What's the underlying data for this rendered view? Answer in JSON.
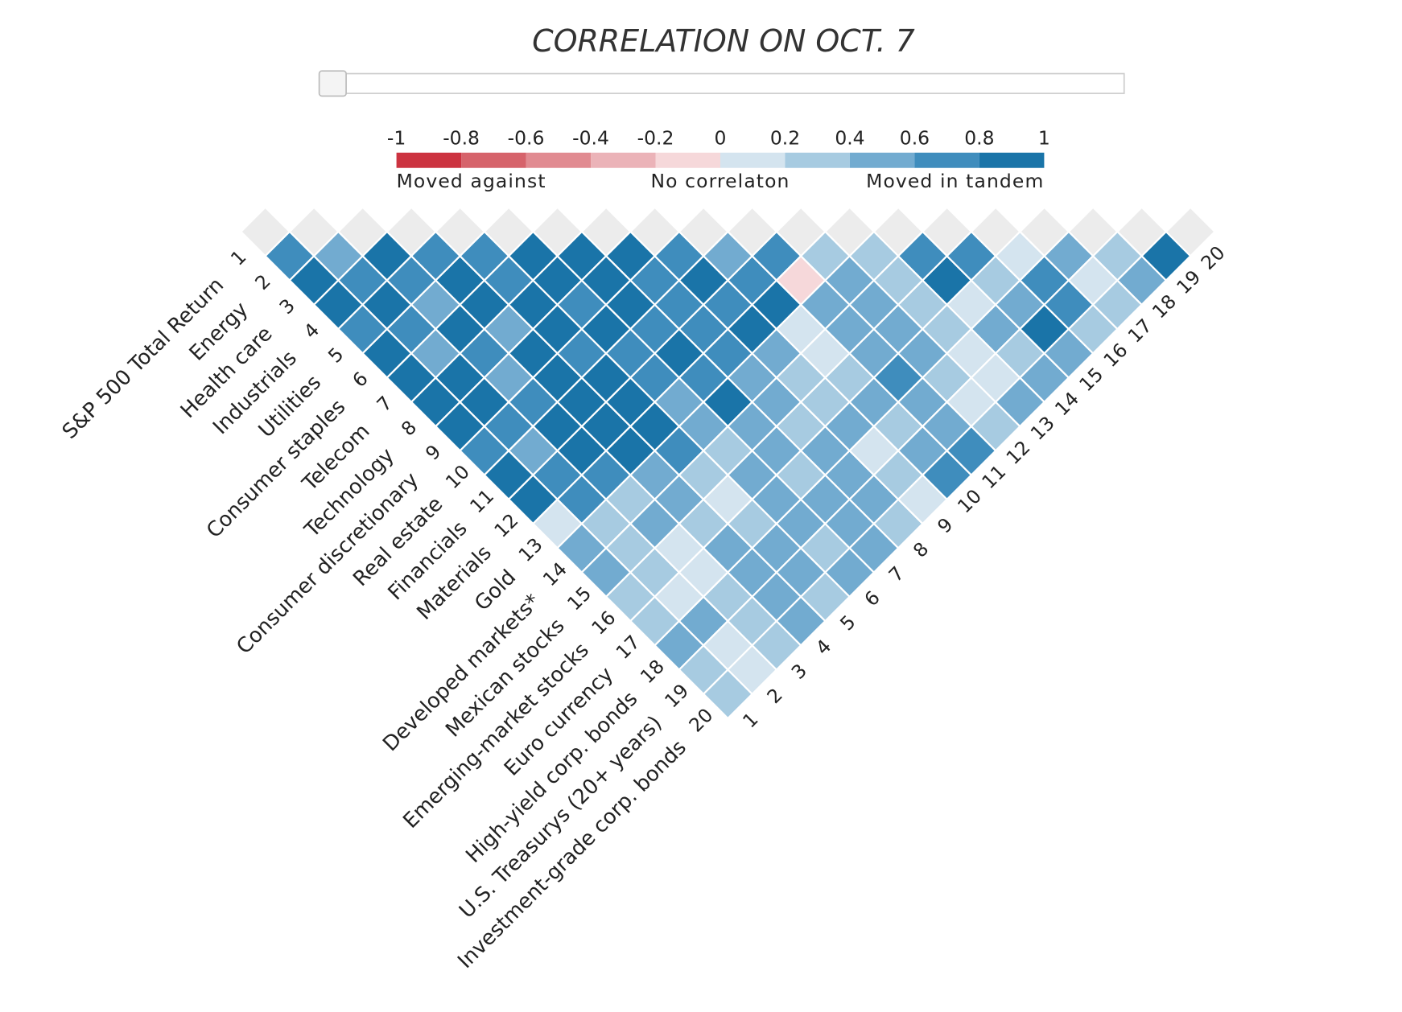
{
  "chart_data": {
    "type": "correlation-triangle",
    "title": "CORRELATION ON OCT. 7",
    "legend": {
      "ticks": [
        -1,
        -0.8,
        -0.6,
        -0.4,
        -0.2,
        0,
        0.2,
        0.4,
        0.6,
        0.8,
        1
      ],
      "colors": [
        "#cc3340",
        "#d6636b",
        "#e18b91",
        "#ebb3b8",
        "#f6d8da",
        "#d4e4ef",
        "#a7cbe1",
        "#72abd0",
        "#3f8dbd",
        "#1a74a8"
      ],
      "labels": [
        "Moved against",
        "No correlaton",
        "Moved in tandem"
      ]
    },
    "indices": [
      1,
      2,
      3,
      4,
      5,
      6,
      7,
      8,
      9,
      10,
      11,
      12,
      13,
      14,
      15,
      16,
      17,
      18,
      19,
      20
    ],
    "names": [
      "S&P 500 Total Return",
      "Energy",
      "Health care",
      "Industrials",
      "Utilities",
      "Consumer staples",
      "Telecom",
      "Technology",
      "Consumer discretionary",
      "Real estate",
      "Financials",
      "Materials",
      "Gold",
      "Developed markets*",
      "Mexican stocks",
      "Emerging-market stocks",
      "Euro currency",
      "High-yield corp. bonds",
      "U.S. Treasurys (20+ years)",
      "Investment-grade corp. bonds"
    ],
    "matrix": [
      [],
      [
        0.7
      ],
      [
        0.9,
        0.5
      ],
      [
        0.9,
        0.7,
        0.9
      ],
      [
        0.7,
        0.9,
        0.7,
        0.7
      ],
      [
        0.9,
        0.7,
        0.5,
        0.9,
        0.7
      ],
      [
        0.9,
        0.5,
        0.9,
        0.9,
        0.7,
        0.9
      ],
      [
        0.9,
        0.9,
        0.7,
        0.5,
        0.9,
        0.9,
        0.9
      ],
      [
        0.9,
        0.9,
        0.5,
        0.9,
        0.9,
        0.7,
        0.9,
        0.9
      ],
      [
        0.7,
        0.7,
        0.7,
        0.9,
        0.7,
        0.9,
        0.9,
        0.7,
        0.7
      ],
      [
        0.9,
        0.5,
        0.9,
        0.9,
        0.9,
        0.7,
        0.7,
        0.7,
        0.9,
        0.5
      ],
      [
        0.9,
        0.7,
        0.9,
        0.9,
        0.9,
        0.7,
        0.9,
        0.7,
        0.7,
        0.7,
        0.7
      ],
      [
        0.1,
        0.7,
        0.7,
        0.9,
        0.9,
        0.5,
        0.7,
        0.7,
        0.9,
        0.9,
        -0.1,
        0.3
      ],
      [
        0.5,
        0.3,
        0.3,
        0.5,
        0.7,
        0.5,
        0.9,
        0.5,
        0.5,
        0.1,
        0.5,
        0.5,
        0.3
      ],
      [
        0.5,
        0.3,
        0.5,
        0.5,
        0.3,
        0.3,
        0.5,
        0.5,
        0.3,
        0.1,
        0.5,
        0.5,
        0.3,
        0.7
      ],
      [
        0.3,
        0.3,
        0.1,
        0.3,
        0.1,
        0.5,
        0.5,
        0.3,
        0.3,
        0.3,
        0.5,
        0.5,
        0.3,
        0.9,
        0.7
      ],
      [
        0.3,
        0.1,
        0.1,
        0.5,
        0.3,
        0.5,
        0.3,
        0.5,
        0.5,
        0.5,
        0.7,
        0.5,
        0.3,
        0.1,
        0.3,
        0.1
      ],
      [
        0.5,
        0.5,
        0.3,
        0.5,
        0.5,
        0.5,
        0.5,
        0.5,
        0.1,
        0.3,
        0.5,
        0.3,
        0.1,
        0.5,
        0.5,
        0.7,
        0.5
      ],
      [
        0.3,
        0.1,
        0.3,
        0.5,
        0.5,
        0.3,
        0.5,
        0.5,
        0.3,
        0.5,
        0.5,
        0.1,
        0.1,
        0.3,
        0.9,
        0.7,
        0.1,
        0.3
      ],
      [
        0.3,
        0.1,
        0.3,
        0.5,
        0.3,
        0.5,
        0.5,
        0.3,
        0.1,
        0.7,
        0.7,
        0.3,
        0.5,
        0.5,
        0.5,
        0.3,
        0.3,
        0.5,
        0.9
      ]
    ]
  }
}
